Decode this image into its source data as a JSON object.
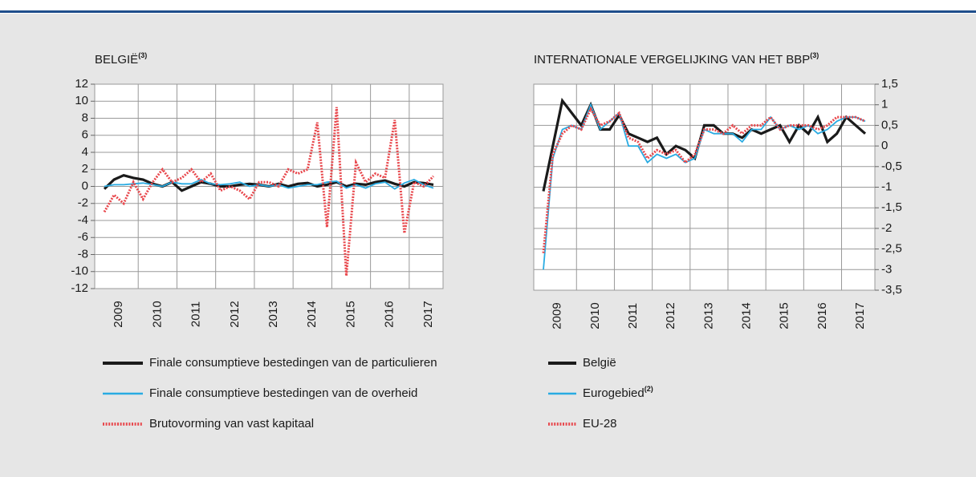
{
  "chart_data": [
    {
      "type": "line",
      "title": "BELGIË",
      "title_superscript": "(3)",
      "categories": [
        "2009",
        null,
        null,
        null,
        "2010",
        null,
        null,
        null,
        "2011",
        null,
        null,
        null,
        "2012",
        null,
        null,
        null,
        "2013",
        null,
        null,
        null,
        "2014",
        null,
        null,
        null,
        "2015",
        null,
        null,
        null,
        "2016",
        null,
        null,
        null,
        "2017",
        null,
        null
      ],
      "ylim": [
        -12,
        12
      ],
      "yticks": [
        -12,
        -10,
        -8,
        -6,
        -4,
        -2,
        0,
        2,
        4,
        6,
        8,
        10,
        12
      ],
      "yaxis_side": "left",
      "grid": true,
      "series": [
        {
          "name": "Finale consumptieve bestedingen van de particulieren",
          "color": "#1a1a1a",
          "style": "solid",
          "width": 3.2,
          "values": [
            -0.3,
            0.8,
            1.3,
            1.0,
            0.8,
            0.3,
            0.0,
            0.5,
            -0.5,
            0.0,
            0.5,
            0.3,
            0.0,
            0.0,
            0.2,
            0.3,
            0.2,
            0.0,
            0.3,
            0.0,
            0.3,
            0.4,
            0.0,
            0.2,
            0.5,
            0.0,
            0.3,
            0.2,
            0.5,
            0.7,
            0.3,
            0.0,
            0.5,
            0.4,
            0.2
          ]
        },
        {
          "name": "Finale consumptieve bestedingen van de overheid",
          "color": "#29abe2",
          "style": "solid",
          "width": 1.8,
          "values": [
            0.0,
            0.2,
            0.2,
            0.3,
            0.4,
            0.2,
            0.0,
            0.5,
            0.3,
            0.3,
            0.8,
            0.3,
            0.2,
            0.3,
            0.5,
            0.0,
            0.2,
            0.0,
            0.2,
            -0.2,
            0.0,
            0.2,
            0.2,
            0.5,
            0.6,
            -0.2,
            0.2,
            -0.2,
            0.3,
            0.5,
            -0.3,
            0.4,
            0.8,
            0.2,
            -0.2
          ]
        },
        {
          "name": "Brutovorming van vast kapitaal",
          "color": "#e8474c",
          "style": "dotted",
          "width": 3,
          "values": [
            -3.0,
            -1.0,
            -2.0,
            0.5,
            -1.5,
            0.5,
            2.0,
            0.5,
            1.0,
            2.0,
            0.5,
            1.5,
            -0.5,
            0.0,
            -0.5,
            -1.5,
            0.5,
            0.5,
            0.0,
            2.0,
            1.5,
            2.0,
            7.5,
            -4.8,
            9.3,
            -10.5,
            2.8,
            0.5,
            1.5,
            1.0,
            7.8,
            -5.5,
            0.5,
            0.0,
            1.2
          ]
        }
      ]
    },
    {
      "type": "line",
      "title": "INTERNATIONALE VERGELIJKING VAN HET BBP",
      "title_superscript": "(3)",
      "categories": [
        "2009",
        null,
        null,
        null,
        "2010",
        null,
        null,
        null,
        "2011",
        null,
        null,
        null,
        "2012",
        null,
        null,
        null,
        "2013",
        null,
        null,
        null,
        "2014",
        null,
        null,
        null,
        "2015",
        null,
        null,
        null,
        "2016",
        null,
        null,
        null,
        "2017",
        null,
        null
      ],
      "ylim": [
        -3.5,
        1.5
      ],
      "yticks": [
        {
          "value": -3.5,
          "label": "-3,5"
        },
        -3,
        {
          "value": -2.5,
          "label": "-2,5"
        },
        -2,
        {
          "value": -1.5,
          "label": "-1,5"
        },
        -1,
        {
          "value": -0.5,
          "label": "-0,5"
        },
        0,
        {
          "value": 0.5,
          "label": "0,5"
        },
        1,
        {
          "value": 1.5,
          "label": "1,5"
        }
      ],
      "yaxis_side": "right",
      "grid": true,
      "series": [
        {
          "name": "België",
          "color": "#1a1a1a",
          "style": "solid",
          "width": 3.2,
          "values": [
            -1.1,
            0.0,
            1.1,
            0.8,
            0.5,
            1.0,
            0.4,
            0.4,
            0.75,
            0.3,
            0.2,
            0.1,
            0.2,
            -0.2,
            0.0,
            -0.1,
            -0.3,
            0.5,
            0.5,
            0.3,
            0.3,
            0.2,
            0.4,
            0.3,
            0.4,
            0.5,
            0.1,
            0.5,
            0.3,
            0.7,
            0.1,
            0.3,
            0.7,
            0.5,
            0.3
          ]
        },
        {
          "name": "Eurogebied",
          "name_superscript": "(2)",
          "color": "#29abe2",
          "style": "solid",
          "width": 1.8,
          "values": [
            -3.0,
            -0.3,
            0.4,
            0.5,
            0.4,
            1.0,
            0.4,
            0.6,
            0.8,
            0.0,
            0.0,
            -0.4,
            -0.2,
            -0.3,
            -0.2,
            -0.4,
            -0.3,
            0.4,
            0.3,
            0.3,
            0.3,
            0.1,
            0.4,
            0.4,
            0.7,
            0.4,
            0.5,
            0.4,
            0.5,
            0.3,
            0.4,
            0.6,
            0.7,
            0.7,
            0.6
          ]
        },
        {
          "name": "EU-28",
          "color": "#e8474c",
          "style": "dotted",
          "width": 3,
          "values": [
            -2.6,
            -0.2,
            0.3,
            0.5,
            0.4,
            0.9,
            0.5,
            0.6,
            0.8,
            0.2,
            0.1,
            -0.3,
            -0.1,
            -0.2,
            -0.1,
            -0.4,
            -0.2,
            0.4,
            0.4,
            0.3,
            0.5,
            0.3,
            0.5,
            0.5,
            0.7,
            0.4,
            0.5,
            0.5,
            0.5,
            0.4,
            0.5,
            0.7,
            0.7,
            0.7,
            0.6
          ]
        }
      ]
    }
  ]
}
